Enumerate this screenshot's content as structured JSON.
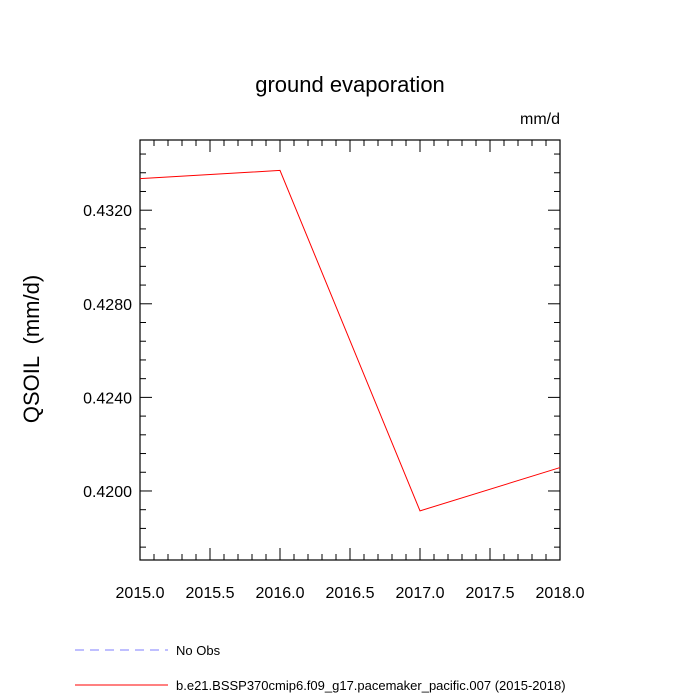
{
  "chart_data": {
    "type": "line",
    "title": "ground evaporation",
    "units": "mm/d",
    "xlabel": "",
    "ylabel": "QSOIL  (mm/d)",
    "xlim": [
      2015.0,
      2018.0
    ],
    "ylim": [
      0.41705,
      0.435
    ],
    "x_ticks": [
      2015.0,
      2015.5,
      2016.0,
      2016.5,
      2017.0,
      2017.5,
      2018.0
    ],
    "x_tick_labels": [
      "2015.0",
      "2015.5",
      "2016.0",
      "2016.5",
      "2017.0",
      "2017.5",
      "2018.0"
    ],
    "y_ticks": [
      0.42,
      0.424,
      0.428,
      0.432
    ],
    "y_tick_labels": [
      "0.4200",
      "0.4240",
      "0.4280",
      "0.4320"
    ],
    "series": [
      {
        "name": "b.e21.BSSP370cmip6.f09_g17.pacemaker_pacific.007 (2015-2018)",
        "color": "#ff0000",
        "x": [
          2015.0,
          2016.0,
          2017.0,
          2018.0
        ],
        "values": [
          0.43335,
          0.4337,
          0.41915,
          0.421
        ]
      }
    ],
    "legend": [
      {
        "label": "No Obs",
        "color": "#7f7fff",
        "style": "dashed"
      },
      {
        "label": "b.e21.BSSP370cmip6.f09_g17.pacemaker_pacific.007 (2015-2018)",
        "color": "#ff0000",
        "style": "solid"
      }
    ]
  }
}
